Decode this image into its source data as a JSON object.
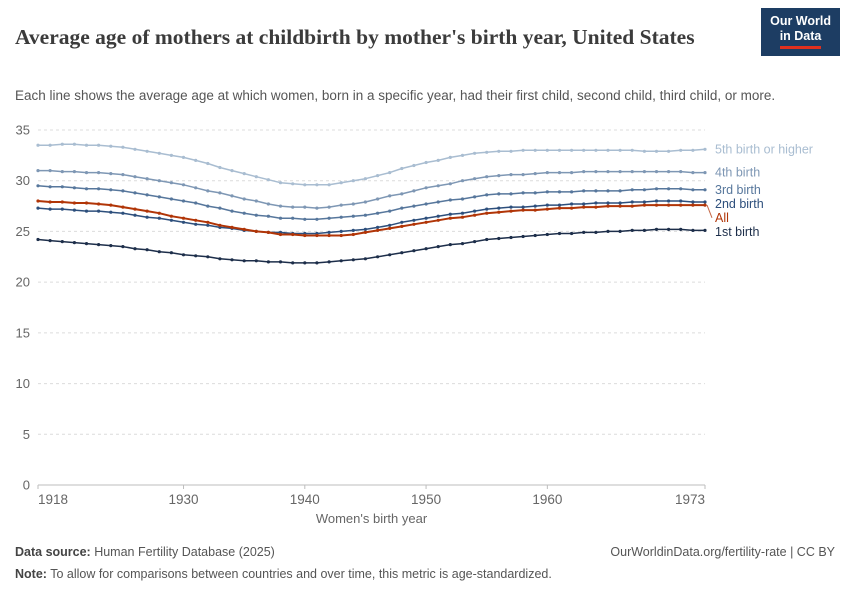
{
  "header": {
    "title": "Average age of mothers at childbirth by mother's birth year, United States",
    "subtitle": "Each line shows the average age at which women, born in a specific year, had their first child, second child, third child, or more.",
    "logo": {
      "line1": "Our World",
      "line2": "in Data"
    }
  },
  "colors": {
    "accent": "#b13507",
    "logo_bg": "#1d3d63",
    "logo_red": "#e0301e"
  },
  "chart_data": {
    "type": "line",
    "title": "Average age of mothers at childbirth by mother's birth year, United States",
    "xlabel": "Women's birth year",
    "ylabel": "",
    "xlim": [
      1918,
      1973
    ],
    "ylim": [
      0,
      35
    ],
    "x_ticks": [
      1918,
      1930,
      1940,
      1950,
      1960,
      1973
    ],
    "y_ticks": [
      0,
      5,
      10,
      15,
      20,
      25,
      30,
      35
    ],
    "grid": "horizontal-dashed",
    "legend_position": "right-edge-labels",
    "x": [
      1918,
      1919,
      1920,
      1921,
      1922,
      1923,
      1924,
      1925,
      1926,
      1927,
      1928,
      1929,
      1930,
      1931,
      1932,
      1933,
      1934,
      1935,
      1936,
      1937,
      1938,
      1939,
      1940,
      1941,
      1942,
      1943,
      1944,
      1945,
      1946,
      1947,
      1948,
      1949,
      1950,
      1951,
      1952,
      1953,
      1954,
      1955,
      1956,
      1957,
      1958,
      1959,
      1960,
      1961,
      1962,
      1963,
      1964,
      1965,
      1966,
      1967,
      1968,
      1969,
      1970,
      1971,
      1972,
      1973
    ],
    "series": [
      {
        "name": "5th birth or higher",
        "color": "#a9bdd1",
        "values": [
          33.5,
          33.5,
          33.6,
          33.6,
          33.5,
          33.5,
          33.4,
          33.3,
          33.1,
          32.9,
          32.7,
          32.5,
          32.3,
          32.0,
          31.7,
          31.3,
          31.0,
          30.7,
          30.4,
          30.1,
          29.8,
          29.7,
          29.6,
          29.6,
          29.6,
          29.8,
          30.0,
          30.2,
          30.5,
          30.8,
          31.2,
          31.5,
          31.8,
          32.0,
          32.3,
          32.5,
          32.7,
          32.8,
          32.9,
          32.9,
          33.0,
          33.0,
          33.0,
          33.0,
          33.0,
          33.0,
          33.0,
          33.0,
          33.0,
          33.0,
          32.9,
          32.9,
          32.9,
          33.0,
          33.0,
          33.1
        ]
      },
      {
        "name": "4th birth",
        "color": "#7e97b4",
        "values": [
          31.0,
          31.0,
          30.9,
          30.9,
          30.8,
          30.8,
          30.7,
          30.6,
          30.4,
          30.2,
          30.0,
          29.8,
          29.6,
          29.3,
          29.0,
          28.8,
          28.5,
          28.2,
          28.0,
          27.7,
          27.5,
          27.4,
          27.4,
          27.3,
          27.4,
          27.6,
          27.7,
          27.9,
          28.2,
          28.5,
          28.7,
          29.0,
          29.3,
          29.5,
          29.7,
          30.0,
          30.2,
          30.4,
          30.5,
          30.6,
          30.6,
          30.7,
          30.8,
          30.8,
          30.8,
          30.9,
          30.9,
          30.9,
          30.9,
          30.9,
          30.9,
          30.9,
          30.9,
          30.9,
          30.8,
          30.8
        ]
      },
      {
        "name": "3rd birth",
        "color": "#57779c",
        "values": [
          29.5,
          29.4,
          29.4,
          29.3,
          29.2,
          29.2,
          29.1,
          29.0,
          28.8,
          28.6,
          28.4,
          28.2,
          28.0,
          27.8,
          27.5,
          27.3,
          27.0,
          26.8,
          26.6,
          26.5,
          26.3,
          26.3,
          26.2,
          26.2,
          26.3,
          26.4,
          26.5,
          26.6,
          26.8,
          27.0,
          27.3,
          27.5,
          27.7,
          27.9,
          28.1,
          28.2,
          28.4,
          28.6,
          28.7,
          28.7,
          28.8,
          28.8,
          28.9,
          28.9,
          28.9,
          29.0,
          29.0,
          29.0,
          29.0,
          29.1,
          29.1,
          29.2,
          29.2,
          29.2,
          29.1,
          29.1
        ]
      },
      {
        "name": "2nd birth",
        "color": "#2d4f7c",
        "values": [
          27.3,
          27.2,
          27.2,
          27.1,
          27.0,
          27.0,
          26.9,
          26.8,
          26.6,
          26.4,
          26.3,
          26.1,
          25.9,
          25.7,
          25.6,
          25.4,
          25.3,
          25.1,
          25.0,
          24.9,
          24.9,
          24.8,
          24.8,
          24.8,
          24.9,
          25.0,
          25.1,
          25.2,
          25.4,
          25.6,
          25.9,
          26.1,
          26.3,
          26.5,
          26.7,
          26.8,
          27.0,
          27.2,
          27.3,
          27.4,
          27.4,
          27.5,
          27.6,
          27.6,
          27.7,
          27.7,
          27.8,
          27.8,
          27.8,
          27.9,
          27.9,
          28.0,
          28.0,
          28.0,
          27.9,
          27.9
        ]
      },
      {
        "name": "All",
        "color": "#b13507",
        "values": [
          28.0,
          27.9,
          27.9,
          27.8,
          27.8,
          27.7,
          27.6,
          27.4,
          27.2,
          27.0,
          26.8,
          26.5,
          26.3,
          26.1,
          25.9,
          25.6,
          25.4,
          25.2,
          25.0,
          24.9,
          24.7,
          24.7,
          24.6,
          24.6,
          24.6,
          24.6,
          24.7,
          24.9,
          25.1,
          25.3,
          25.5,
          25.7,
          25.9,
          26.1,
          26.3,
          26.4,
          26.6,
          26.8,
          26.9,
          27.0,
          27.1,
          27.1,
          27.2,
          27.3,
          27.3,
          27.4,
          27.4,
          27.5,
          27.5,
          27.5,
          27.6,
          27.6,
          27.6,
          27.6,
          27.6,
          27.6
        ]
      },
      {
        "name": "1st birth",
        "color": "#1d2e4a",
        "values": [
          24.2,
          24.1,
          24.0,
          23.9,
          23.8,
          23.7,
          23.6,
          23.5,
          23.3,
          23.2,
          23.0,
          22.9,
          22.7,
          22.6,
          22.5,
          22.3,
          22.2,
          22.1,
          22.1,
          22.0,
          22.0,
          21.9,
          21.9,
          21.9,
          22.0,
          22.1,
          22.2,
          22.3,
          22.5,
          22.7,
          22.9,
          23.1,
          23.3,
          23.5,
          23.7,
          23.8,
          24.0,
          24.2,
          24.3,
          24.4,
          24.5,
          24.6,
          24.7,
          24.8,
          24.8,
          24.9,
          24.9,
          25.0,
          25.0,
          25.1,
          25.1,
          25.2,
          25.2,
          25.2,
          25.1,
          25.1
        ]
      }
    ]
  },
  "footer": {
    "datasource_label": "Data source:",
    "datasource_value": " Human Fertility Database (2025)",
    "url": "OurWorldinData.org/fertility-rate | CC BY",
    "note_label": "Note:",
    "note_value": " To allow for comparisons between countries and over time, this metric is age-standardized."
  }
}
